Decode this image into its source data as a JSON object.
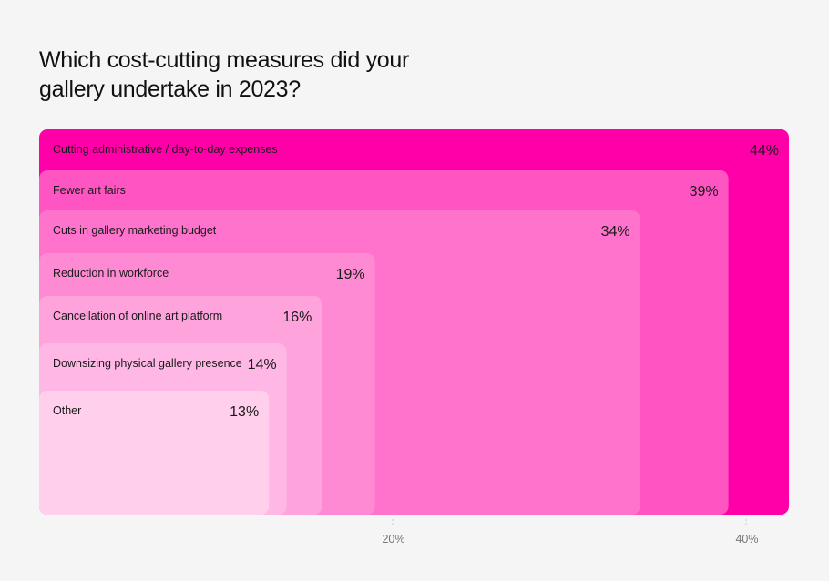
{
  "chart_data": {
    "type": "bar",
    "title": "Which cost-cutting measures did your gallery undertake in 2023?",
    "categories": [
      "Cutting administrative / day-to-day expenses",
      "Fewer art fairs",
      "Cuts in gallery marketing budget",
      "Reduction in workforce",
      "Cancellation of online art platform",
      "Downsizing physical gallery presence",
      "Other"
    ],
    "values": [
      44,
      39,
      34,
      19,
      16,
      14,
      13
    ],
    "value_labels": [
      "44%",
      "39%",
      "34%",
      "19%",
      "16%",
      "14%",
      "13%"
    ],
    "colors": [
      "#ff00a8",
      "#ff55c2",
      "#ff73cd",
      "#ff8ad4",
      "#ffa3dd",
      "#ffb8e5",
      "#ffcfec"
    ],
    "x_ticks": [
      20,
      40
    ],
    "x_tick_labels": [
      "20%",
      "40%"
    ],
    "xlabel": "",
    "ylabel": "",
    "xlim": [
      0,
      44
    ],
    "grid": false,
    "legend": "none"
  }
}
